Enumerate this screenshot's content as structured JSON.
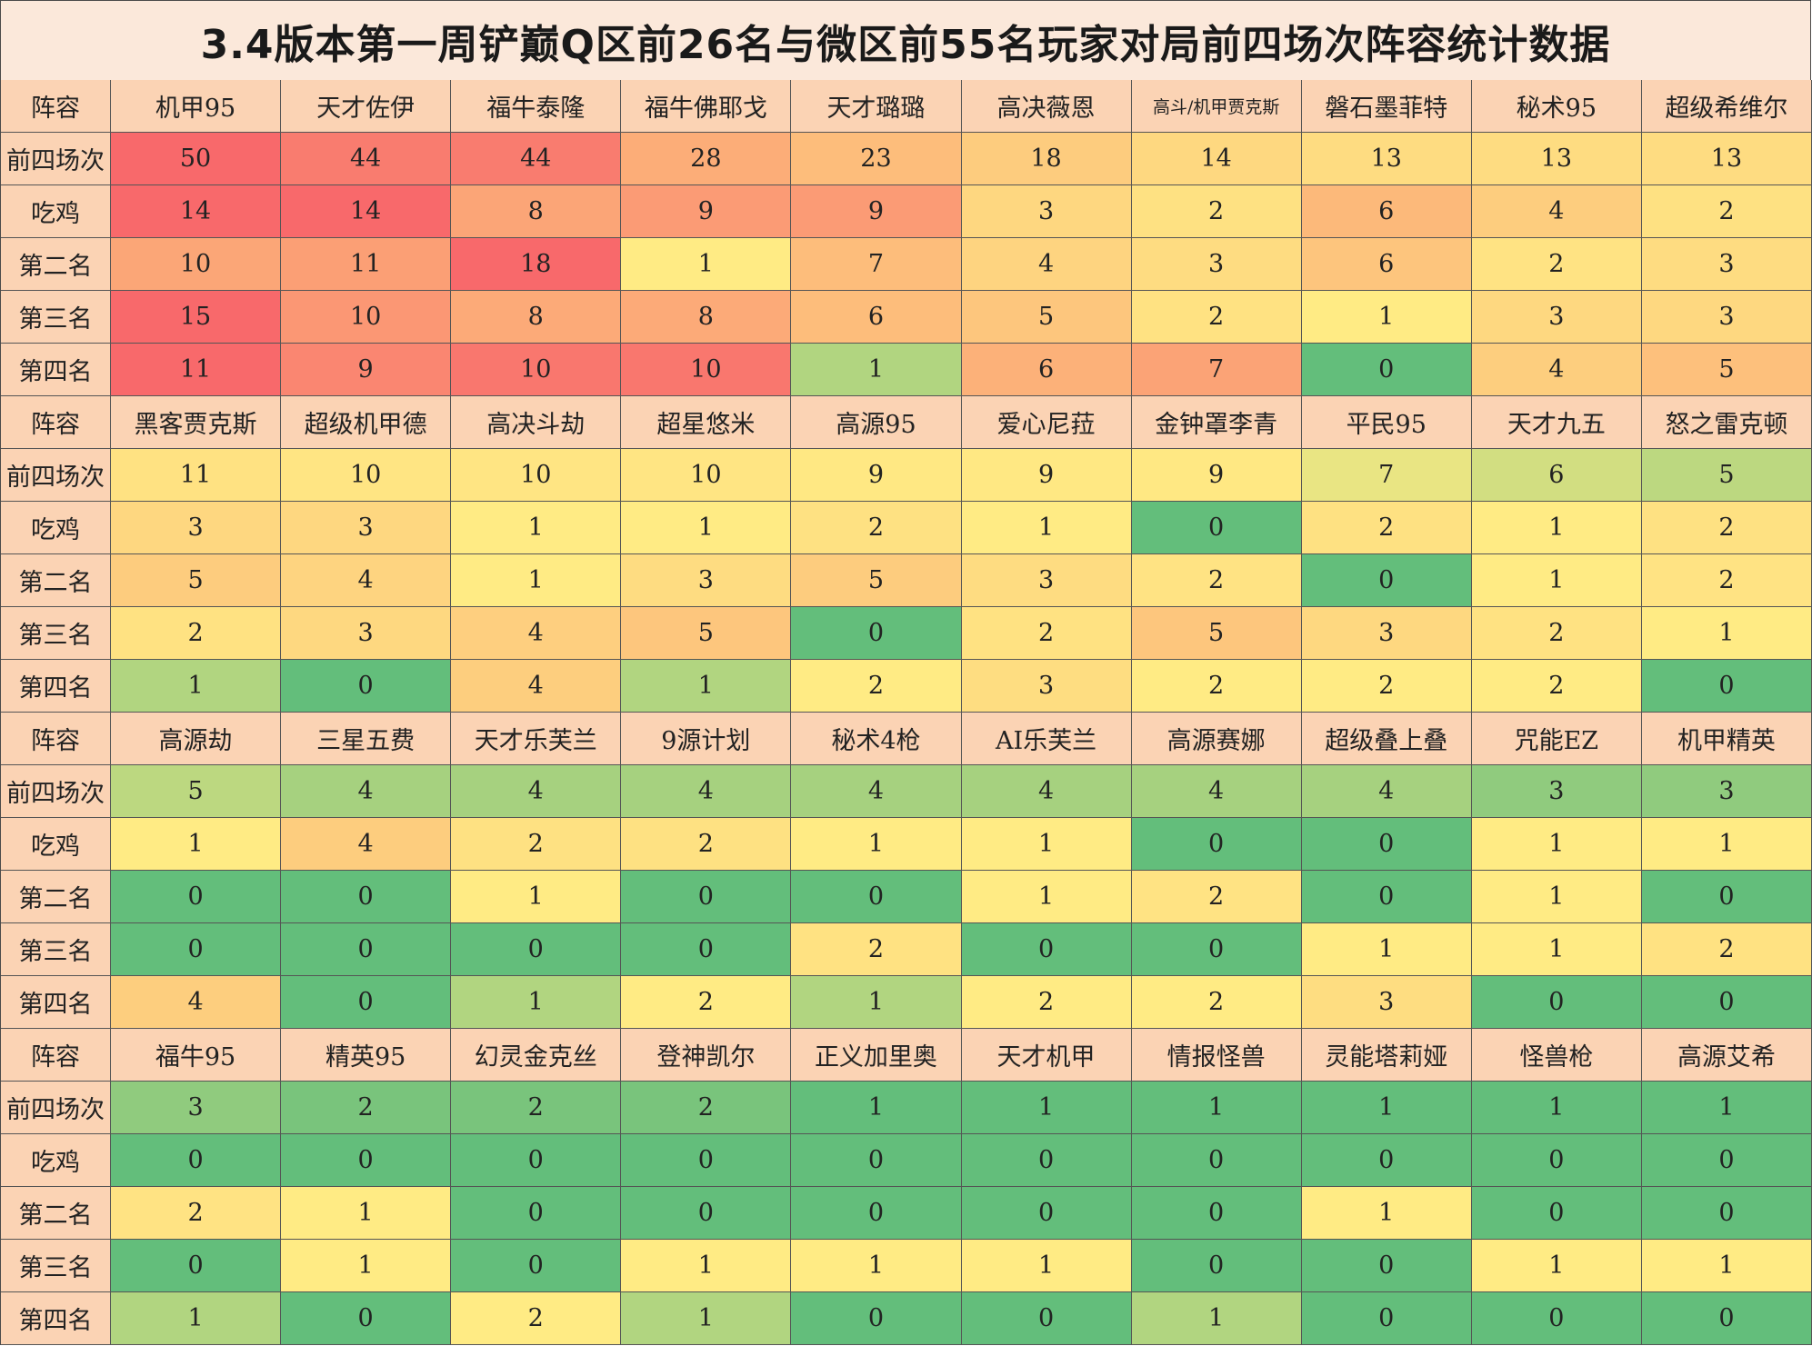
{
  "title": "3.4版本第一周铲巅Q区前26名与微区前55名玩家对局前四场次阵容统计数据",
  "chart_data": {
    "type": "table",
    "header_label": "阵容",
    "row_labels": [
      "前四场次",
      "吃鸡",
      "第二名",
      "第三名",
      "第四名"
    ],
    "blocks": [
      {
        "lineups": [
          "机甲95",
          "天才佐伊",
          "福牛泰隆",
          "福牛佛耶戈",
          "天才璐璐",
          "高决薇恩",
          "高斗/机甲贾克斯",
          "磐石墨菲特",
          "秘术95",
          "超级希维尔"
        ],
        "rows": [
          [
            50,
            44,
            44,
            28,
            23,
            18,
            14,
            13,
            13,
            13
          ],
          [
            14,
            14,
            8,
            9,
            9,
            3,
            2,
            6,
            4,
            2
          ],
          [
            10,
            11,
            18,
            1,
            7,
            4,
            3,
            6,
            2,
            3
          ],
          [
            15,
            10,
            8,
            8,
            6,
            5,
            2,
            1,
            3,
            3
          ],
          [
            11,
            9,
            10,
            10,
            1,
            6,
            7,
            0,
            4,
            5
          ]
        ]
      },
      {
        "lineups": [
          "黑客贾克斯",
          "超级机甲德",
          "高决斗劫",
          "超星悠米",
          "高源95",
          "爱心尼菈",
          "金钟罩李青",
          "平民95",
          "天才九五",
          "怒之雷克顿"
        ],
        "rows": [
          [
            11,
            10,
            10,
            10,
            9,
            9,
            9,
            7,
            6,
            5
          ],
          [
            3,
            3,
            1,
            1,
            2,
            1,
            0,
            2,
            1,
            2
          ],
          [
            5,
            4,
            1,
            3,
            5,
            3,
            2,
            0,
            1,
            2
          ],
          [
            2,
            3,
            4,
            5,
            0,
            2,
            5,
            3,
            2,
            1
          ],
          [
            1,
            0,
            4,
            1,
            2,
            3,
            2,
            2,
            2,
            0
          ]
        ]
      },
      {
        "lineups": [
          "高源劫",
          "三星五费",
          "天才乐芙兰",
          "9源计划",
          "秘术4枪",
          "AI乐芙兰",
          "高源赛娜",
          "超级叠上叠",
          "咒能EZ",
          "机甲精英"
        ],
        "rows": [
          [
            5,
            4,
            4,
            4,
            4,
            4,
            4,
            4,
            3,
            3
          ],
          [
            1,
            4,
            2,
            2,
            1,
            1,
            0,
            0,
            1,
            1
          ],
          [
            0,
            0,
            1,
            0,
            0,
            1,
            2,
            0,
            1,
            0
          ],
          [
            0,
            0,
            0,
            0,
            2,
            0,
            0,
            1,
            1,
            2
          ],
          [
            4,
            0,
            1,
            2,
            1,
            2,
            2,
            3,
            0,
            0
          ]
        ]
      },
      {
        "lineups": [
          "福牛95",
          "精英95",
          "幻灵金克丝",
          "登神凯尔",
          "正义加里奥",
          "天才机甲",
          "情报怪兽",
          "灵能塔莉娅",
          "怪兽枪",
          "高源艾希"
        ],
        "rows": [
          [
            3,
            2,
            2,
            2,
            1,
            1,
            1,
            1,
            1,
            1
          ],
          [
            0,
            0,
            0,
            0,
            0,
            0,
            0,
            0,
            0,
            0
          ],
          [
            2,
            1,
            0,
            0,
            0,
            0,
            0,
            1,
            0,
            0
          ],
          [
            0,
            1,
            0,
            1,
            1,
            1,
            0,
            0,
            1,
            1
          ],
          [
            1,
            0,
            2,
            1,
            0,
            0,
            1,
            0,
            0,
            0
          ]
        ]
      }
    ],
    "color_scale": {
      "low": "#63be7b",
      "mid": "#ffeb84",
      "high": "#f8696b"
    }
  }
}
